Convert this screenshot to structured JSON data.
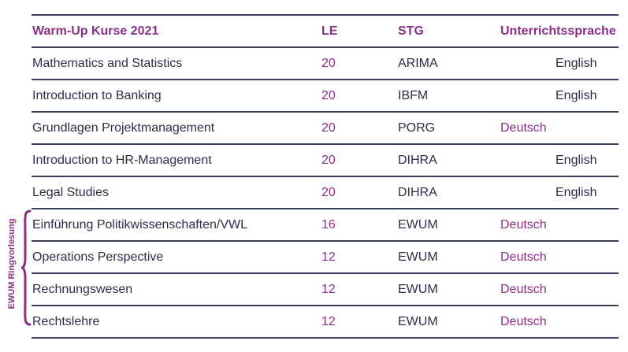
{
  "header": {
    "course": "Warm-Up Kurse 2021",
    "le": "LE",
    "stg": "STG",
    "language": "Unterrichtssprache"
  },
  "rows": [
    {
      "course": "Mathematics and Statistics",
      "le": "20",
      "stg": "ARIMA",
      "language": "English"
    },
    {
      "course": "Introduction to Banking",
      "le": "20",
      "stg": "IBFM",
      "language": "English"
    },
    {
      "course": "Grundlagen Projektmanagement",
      "le": "20",
      "stg": "PORG",
      "language": "Deutsch"
    },
    {
      "course": "Introduction to HR-Management",
      "le": "20",
      "stg": "DIHRA",
      "language": "English"
    },
    {
      "course": "Legal Studies",
      "le": "20",
      "stg": "DIHRA",
      "language": "English"
    },
    {
      "course": "Einführung Politikwissenschaften/VWL",
      "le": "16",
      "stg": "EWUM",
      "language": "Deutsch"
    },
    {
      "course": "Operations Perspective",
      "le": "12",
      "stg": "EWUM",
      "language": "Deutsch"
    },
    {
      "course": "Rechnungswesen",
      "le": "12",
      "stg": "EWUM",
      "language": "Deutsch"
    },
    {
      "course": "Rechtslehre",
      "le": "12",
      "stg": "EWUM",
      "language": "Deutsch"
    }
  ],
  "group_label": "EWUM Ringvorlesung",
  "colors": {
    "accent": "#8a2f86",
    "text": "#2b2f45",
    "rule": "#3a3f5c"
  }
}
